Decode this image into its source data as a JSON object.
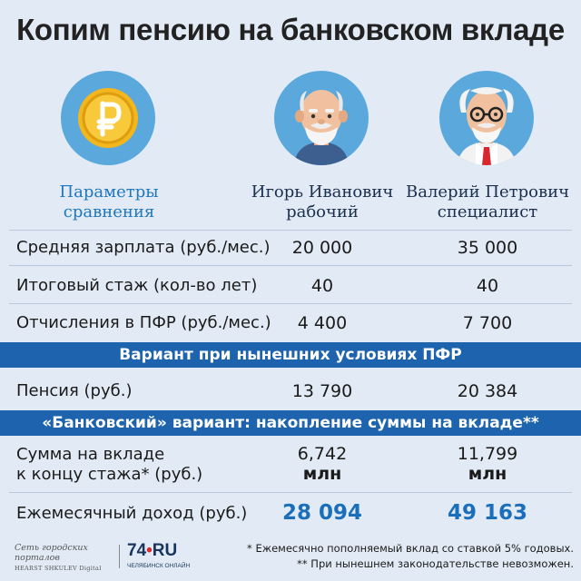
{
  "title": "Копим пенсию на банковском вкладе",
  "icons": {
    "coin": "ruble-coin-icon",
    "igor": "elderly-man-avatar-icon",
    "valery": "elderly-man-glasses-tie-avatar-icon"
  },
  "columns": {
    "params": [
      "Параметры",
      "сравнения"
    ],
    "igor": [
      "Игорь Иванович",
      "рабочий"
    ],
    "valery": [
      "Валерий Петрович",
      "специалист"
    ]
  },
  "rows": [
    {
      "label": "Средняя зарплата (руб./мес.)",
      "igor": "20 000",
      "valery": "35 000"
    },
    {
      "label": "Итоговый стаж (кол-во лет)",
      "igor": "40",
      "valery": "40"
    },
    {
      "label": "Отчисления в ПФР (руб./мес.)",
      "igor": "4 400",
      "valery": "7 700"
    }
  ],
  "band1": "Вариант при нынешних условиях ПФР",
  "pension": {
    "label": "Пенсия (руб.)",
    "igor": "13 790",
    "valery": "20 384"
  },
  "band2": "«Банковский» вариант: накопление суммы на вкладе**",
  "deposit": {
    "label": [
      "Сумма на вкладе",
      "к концу стажа* (руб.)"
    ],
    "igor": [
      "6,742",
      "млн"
    ],
    "valery": [
      "11,799",
      "млн"
    ]
  },
  "income": {
    "label": "Ежемесячный доход (руб.)",
    "igor": "28 094",
    "valery": "49 163"
  },
  "footer": {
    "left_line1": "Сеть городских порталов",
    "left_line2": "HEARST SHKULEV Digital",
    "logo_num": "74",
    "logo_dot": "•",
    "logo_ru": "RU",
    "logo_sub": "ЧЕЛЯБИНСК ОНЛАЙН",
    "note1": "* Ежемесячно пополняемый вклад со ставкой 5% годовых.",
    "note2": "** При нынешнем законодательстве невозможен."
  },
  "colors": {
    "background": "#e2ebf5",
    "band": "#1d63ad",
    "accent": "#1b6fba",
    "circle": "#5ba9dc",
    "coin": "#f3b61d"
  }
}
